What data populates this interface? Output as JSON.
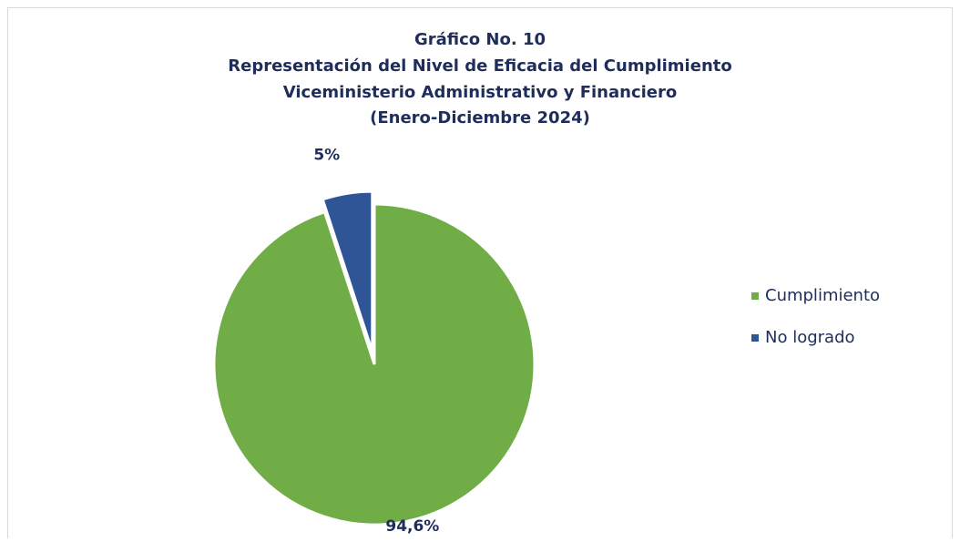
{
  "chart_data": {
    "type": "pie",
    "title": [
      "Gráfico No. 10",
      "Representación del Nivel de Eficacia del Cumplimiento",
      "Viceministerio Administrativo y Financiero",
      "(Enero-Diciembre 2024)"
    ],
    "categories": [
      "Cumplimiento",
      "No logrado"
    ],
    "values": [
      94.6,
      5
    ],
    "value_labels": [
      "94,6%",
      "5%"
    ],
    "colors": [
      "#70ad47",
      "#2f5597"
    ],
    "legend": "right"
  }
}
